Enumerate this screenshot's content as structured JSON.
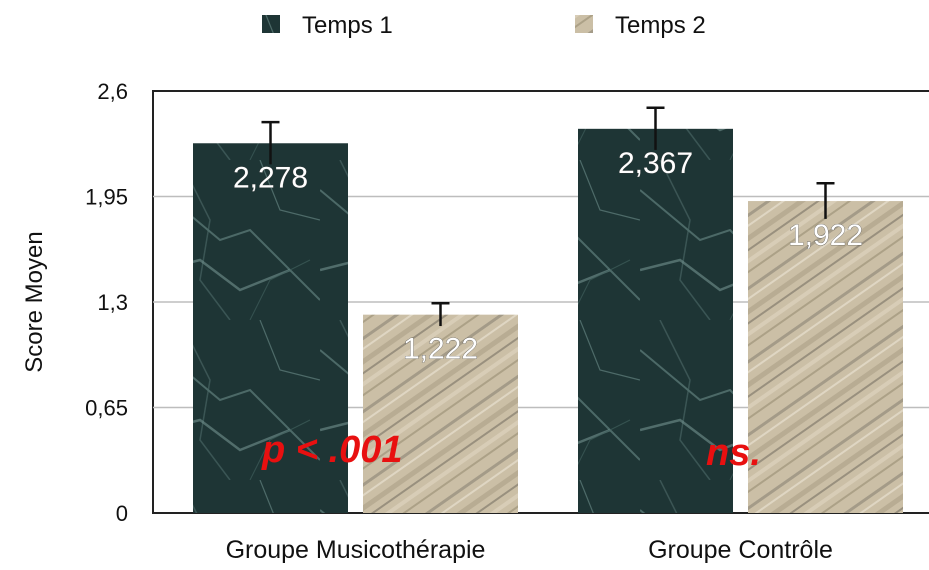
{
  "chart_data": {
    "type": "bar",
    "categories": [
      "Groupe Musicothérapie",
      "Groupe Contrôle"
    ],
    "series": [
      {
        "name": "Temps 1",
        "values": [
          2.278,
          2.367
        ],
        "labels": [
          "2,278",
          "2,367"
        ],
        "error": [
          0.13,
          0.13
        ],
        "color": "#1e3535"
      },
      {
        "name": "Temps 2",
        "values": [
          1.222,
          1.922
        ],
        "labels": [
          "1,222",
          "1,922"
        ],
        "error": [
          0.07,
          0.11
        ],
        "color": "#c8bca2"
      }
    ],
    "ylabel": "Score Moyen",
    "xlabel": "",
    "ylim": [
      0,
      2.6
    ],
    "yticks": [
      0,
      0.65,
      1.3,
      1.95,
      2.6
    ],
    "ytick_labels": [
      "0",
      "0,65",
      "1,3",
      "1,95",
      "2,6"
    ],
    "grid": true,
    "legend_position": "top-center",
    "annotations": [
      {
        "text": "p < .001",
        "category": 0,
        "color": "#e81010"
      },
      {
        "text": "ns.",
        "category": 1,
        "color": "#e81010"
      }
    ]
  }
}
